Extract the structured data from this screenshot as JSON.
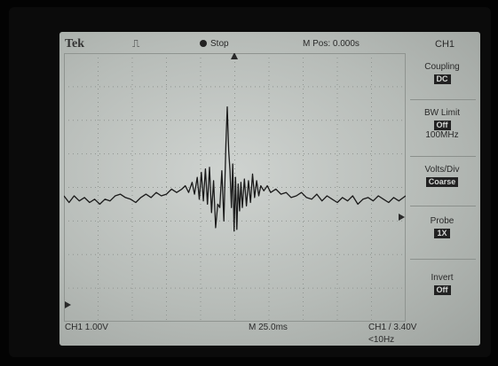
{
  "header": {
    "brand": "Tek",
    "trigger_glyph": "⎍",
    "run_status": "Stop",
    "horizontal_position": "M Pos: 0.000s"
  },
  "menu": {
    "title": "CH1",
    "items": [
      {
        "label": "Coupling",
        "value": "DC"
      },
      {
        "label": "BW Limit",
        "value": "Off",
        "extra": "100MHz"
      },
      {
        "label": "Volts/Div",
        "value": "Coarse"
      },
      {
        "label": "Probe",
        "value": "1X"
      },
      {
        "label": "Invert",
        "value": "Off"
      }
    ]
  },
  "footer": {
    "ch1_scale": "CH1  1.00V",
    "time_scale": "M 25.0ms",
    "trigger_source": "CH1  /  3.40V",
    "trigger_frequency": "<10Hz"
  },
  "waveform": {
    "divisions_x": 10,
    "divisions_y": 8,
    "trace_color": "#1a1a1a",
    "grid_color": "#8f9490",
    "trace_y_divs": [
      [
        0.0,
        0.05
      ],
      [
        0.15,
        -0.15
      ],
      [
        0.3,
        0.05
      ],
      [
        0.45,
        -0.1
      ],
      [
        0.6,
        0.0
      ],
      [
        0.75,
        -0.15
      ],
      [
        0.9,
        -0.05
      ],
      [
        1.05,
        -0.2
      ],
      [
        1.2,
        -0.05
      ],
      [
        1.35,
        -0.1
      ],
      [
        1.5,
        0.05
      ],
      [
        1.65,
        0.1
      ],
      [
        1.8,
        0.0
      ],
      [
        1.95,
        -0.05
      ],
      [
        2.1,
        -0.15
      ],
      [
        2.25,
        0.0
      ],
      [
        2.4,
        0.1
      ],
      [
        2.55,
        0.0
      ],
      [
        2.7,
        0.15
      ],
      [
        2.85,
        0.05
      ],
      [
        3.0,
        0.1
      ],
      [
        3.15,
        0.25
      ],
      [
        3.3,
        0.15
      ],
      [
        3.45,
        0.25
      ],
      [
        3.55,
        0.35
      ],
      [
        3.65,
        0.15
      ],
      [
        3.75,
        0.45
      ],
      [
        3.82,
        0.1
      ],
      [
        3.9,
        0.6
      ],
      [
        3.96,
        -0.05
      ],
      [
        4.02,
        0.75
      ],
      [
        4.08,
        -0.1
      ],
      [
        4.14,
        0.85
      ],
      [
        4.2,
        -0.2
      ],
      [
        4.26,
        0.9
      ],
      [
        4.32,
        -0.45
      ],
      [
        4.38,
        0.5
      ],
      [
        4.44,
        -0.9
      ],
      [
        4.5,
        -0.2
      ],
      [
        4.56,
        -0.3
      ],
      [
        4.62,
        0.8
      ],
      [
        4.68,
        -0.7
      ],
      [
        4.74,
        1.6
      ],
      [
        4.78,
        2.7
      ],
      [
        4.82,
        1.4
      ],
      [
        4.86,
        0.8
      ],
      [
        4.9,
        -0.3
      ],
      [
        4.94,
        1.0
      ],
      [
        4.98,
        -1.0
      ],
      [
        5.02,
        0.6
      ],
      [
        5.06,
        -0.95
      ],
      [
        5.1,
        0.4
      ],
      [
        5.14,
        -0.4
      ],
      [
        5.18,
        0.45
      ],
      [
        5.22,
        -0.3
      ],
      [
        5.28,
        0.55
      ],
      [
        5.34,
        -0.25
      ],
      [
        5.4,
        0.5
      ],
      [
        5.46,
        -0.15
      ],
      [
        5.52,
        0.7
      ],
      [
        5.58,
        0.0
      ],
      [
        5.64,
        0.5
      ],
      [
        5.7,
        0.05
      ],
      [
        5.76,
        0.35
      ],
      [
        5.85,
        0.2
      ],
      [
        5.95,
        0.35
      ],
      [
        6.05,
        0.15
      ],
      [
        6.2,
        0.25
      ],
      [
        6.35,
        0.1
      ],
      [
        6.5,
        0.15
      ],
      [
        6.65,
        0.0
      ],
      [
        6.8,
        0.05
      ],
      [
        6.95,
        0.15
      ],
      [
        7.1,
        0.0
      ],
      [
        7.25,
        -0.05
      ],
      [
        7.4,
        0.1
      ],
      [
        7.55,
        -0.1
      ],
      [
        7.7,
        0.05
      ],
      [
        7.85,
        -0.05
      ],
      [
        8.0,
        -0.15
      ],
      [
        8.15,
        0.0
      ],
      [
        8.3,
        -0.1
      ],
      [
        8.45,
        0.05
      ],
      [
        8.6,
        -0.2
      ],
      [
        8.75,
        -0.05
      ],
      [
        8.9,
        0.0
      ],
      [
        9.05,
        -0.1
      ],
      [
        9.2,
        0.05
      ],
      [
        9.35,
        -0.05
      ],
      [
        9.5,
        -0.15
      ],
      [
        9.65,
        0.0
      ],
      [
        9.8,
        -0.1
      ],
      [
        10.0,
        0.05
      ]
    ],
    "baseline_y_divs": 0.3
  }
}
